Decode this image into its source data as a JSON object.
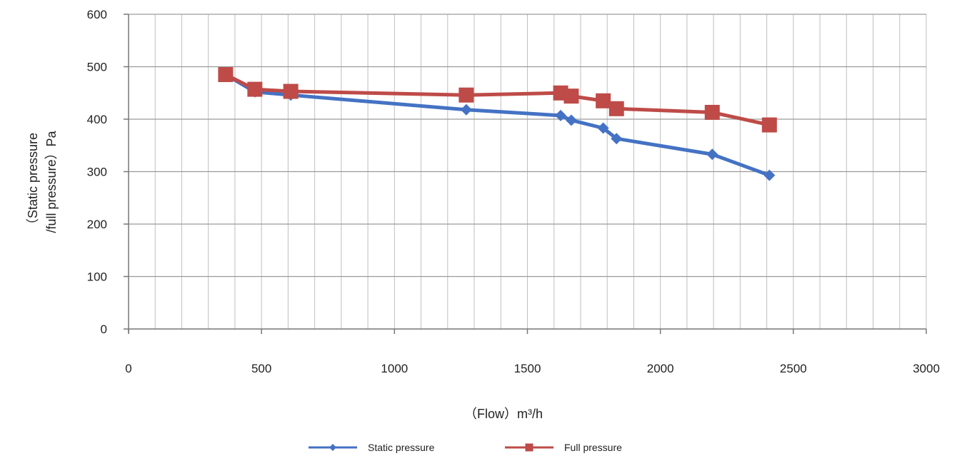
{
  "chart_data": {
    "type": "line",
    "title": "",
    "xlabel": "（Flow）m³/h",
    "ylabel_lines": [
      "（Static pressure",
      "/full pressure）Pa"
    ],
    "xlim": [
      0,
      3000
    ],
    "ylim": [
      0,
      600
    ],
    "x_ticks": [
      "0",
      "500",
      "1000",
      "1500",
      "2000",
      "2500",
      "3000"
    ],
    "y_ticks": [
      "0",
      "100",
      "200",
      "300",
      "400",
      "500",
      "600"
    ],
    "grid": true,
    "legend_position": "bottom",
    "series": [
      {
        "name": "Static pressure",
        "color": "#4472c4",
        "marker": "diamond",
        "x": [
          365,
          475,
          610,
          1270,
          1625,
          1665,
          1785,
          1835,
          2195,
          2410
        ],
        "y": [
          485,
          452,
          446,
          418,
          407,
          398,
          383,
          363,
          333,
          293
        ]
      },
      {
        "name": "Full pressure",
        "color": "#be4b48",
        "marker": "square",
        "x": [
          365,
          475,
          610,
          1270,
          1625,
          1665,
          1785,
          1835,
          2195,
          2410
        ],
        "y": [
          485,
          457,
          453,
          446,
          450,
          444,
          435,
          420,
          413,
          389
        ]
      }
    ]
  }
}
